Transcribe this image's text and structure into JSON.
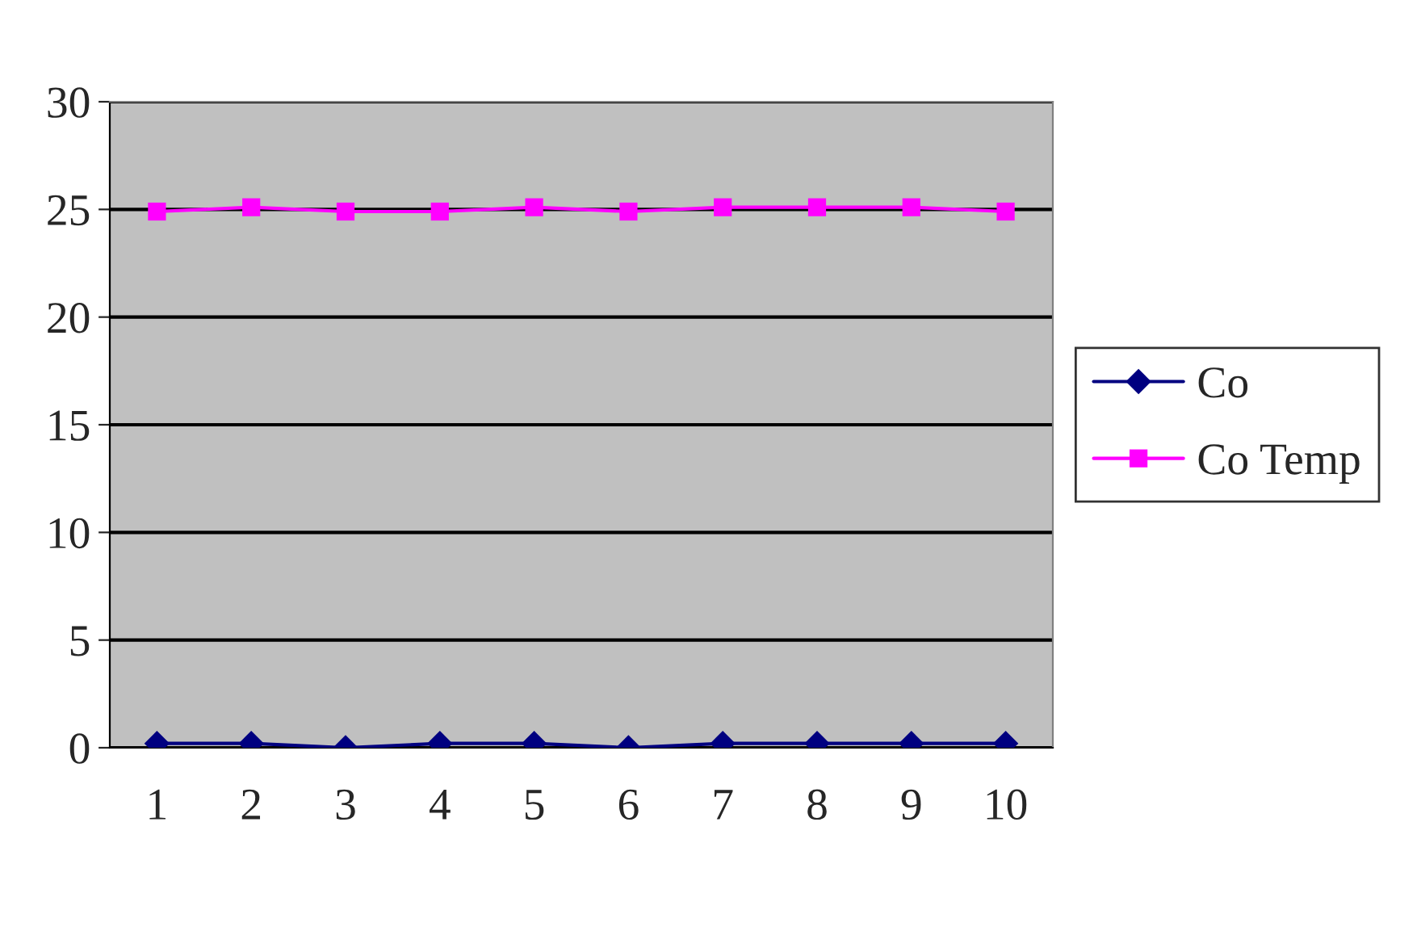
{
  "chart_data": {
    "type": "line",
    "categories": [
      "1",
      "2",
      "3",
      "4",
      "5",
      "6",
      "7",
      "8",
      "9",
      "10"
    ],
    "series": [
      {
        "name": "Co",
        "color": "#000080",
        "marker": "diamond",
        "values": [
          0.2,
          0.2,
          0,
          0.2,
          0.2,
          0,
          0.2,
          0.2,
          0.2,
          0.2
        ]
      },
      {
        "name": "Co Temp",
        "color": "#ff00ff",
        "marker": "square",
        "values": [
          24.9,
          25.1,
          24.9,
          24.9,
          25.1,
          24.9,
          25.1,
          25.1,
          25.1,
          24.9
        ]
      }
    ],
    "ylim": [
      0,
      30
    ],
    "yticks": [
      0,
      5,
      10,
      15,
      20,
      25,
      30
    ],
    "grid": "y",
    "legend": "right"
  }
}
